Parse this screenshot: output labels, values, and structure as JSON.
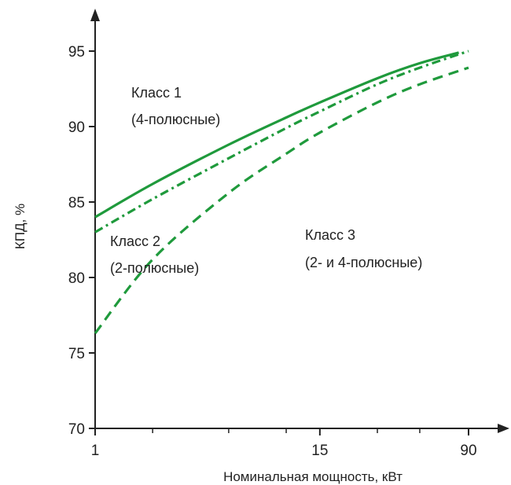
{
  "chart_data": {
    "type": "line",
    "xlabel": "Номинальная мощность, кВт",
    "ylabel": "КПД, %",
    "x_scale": "log",
    "xlim": [
      1,
      90
    ],
    "ylim": [
      70,
      95
    ],
    "x_ticks": [
      {
        "value": 1,
        "label": "1"
      },
      {
        "value": 15,
        "label": "15"
      },
      {
        "value": 90,
        "label": "90"
      }
    ],
    "x_minor_ticks": [
      2,
      5,
      10,
      30,
      50
    ],
    "y_ticks": [
      {
        "value": 70,
        "label": "70"
      },
      {
        "value": 75,
        "label": "75"
      },
      {
        "value": 80,
        "label": "80"
      },
      {
        "value": 85,
        "label": "85"
      },
      {
        "value": 90,
        "label": "90"
      },
      {
        "value": 95,
        "label": "95"
      }
    ],
    "grid": false,
    "line_color": "#1f9a3c",
    "axis_color": "#222222",
    "series": [
      {
        "style": "solid",
        "points": [
          [
            1,
            84.0
          ],
          [
            2,
            86.2
          ],
          [
            5,
            88.8
          ],
          [
            10,
            90.6
          ],
          [
            15,
            91.6
          ],
          [
            30,
            93.2
          ],
          [
            50,
            94.2
          ],
          [
            80,
            94.9
          ]
        ]
      },
      {
        "style": "dash-dot",
        "points": [
          [
            1,
            83.0
          ],
          [
            2,
            85.2
          ],
          [
            5,
            87.9
          ],
          [
            10,
            89.9
          ],
          [
            15,
            91.0
          ],
          [
            30,
            92.8
          ],
          [
            50,
            93.9
          ],
          [
            90,
            95.0
          ]
        ]
      },
      {
        "style": "dashed",
        "points": [
          [
            1,
            76.3
          ],
          [
            2,
            81.2
          ],
          [
            5,
            85.6
          ],
          [
            10,
            88.2
          ],
          [
            15,
            89.6
          ],
          [
            30,
            91.6
          ],
          [
            50,
            92.8
          ],
          [
            90,
            93.9
          ]
        ]
      }
    ],
    "annotations": [
      {
        "id": "class1",
        "lines": [
          "Класс 1",
          "(4-полюсные)"
        ]
      },
      {
        "id": "class2",
        "lines": [
          "Класс 2",
          "(2-полюсные)"
        ]
      },
      {
        "id": "class3",
        "lines": [
          "Класс 3",
          "(2- и 4-полюсные)"
        ]
      }
    ]
  }
}
